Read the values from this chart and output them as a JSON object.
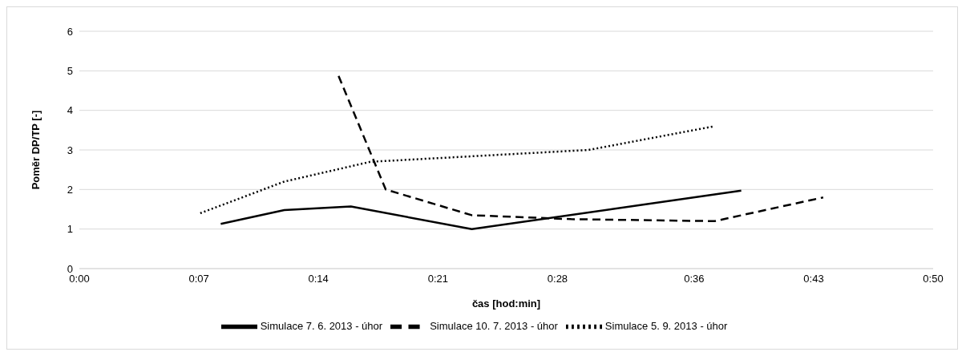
{
  "chart_data": {
    "type": "line",
    "xlabel": "čas [hod:min]",
    "ylabel": "Poměr DP/TP [-]",
    "xlim": [
      0,
      0.8333
    ],
    "xticks": [
      {
        "value": 0,
        "label": "0:00"
      },
      {
        "value": 0.1167,
        "label": "0:07"
      },
      {
        "value": 0.2333,
        "label": "0:14"
      },
      {
        "value": 0.35,
        "label": "0:21"
      },
      {
        "value": 0.4667,
        "label": "0:28"
      },
      {
        "value": 0.6,
        "label": "0:36"
      },
      {
        "value": 0.7167,
        "label": "0:43"
      },
      {
        "value": 0.8333,
        "label": "0:50"
      }
    ],
    "ylim": [
      0,
      6
    ],
    "yticks": [
      0,
      1,
      2,
      3,
      4,
      5,
      6
    ],
    "grid": "y",
    "legend": "bottom",
    "marker": "none",
    "series": [
      {
        "name": "Simulace 7. 6. 2013 - úhor",
        "color": "#000000",
        "line_style": "solid",
        "x": [
          0.138,
          0.2,
          0.265,
          0.383,
          0.646
        ],
        "values": [
          1.13,
          1.48,
          1.57,
          1.0,
          1.97
        ]
      },
      {
        "name": "Simulace 10. 7. 2013 - úhor",
        "color": "#000000",
        "line_style": "dashed",
        "x": [
          0.253,
          0.299,
          0.383,
          0.48,
          0.62,
          0.726
        ],
        "values": [
          4.87,
          2.0,
          1.35,
          1.25,
          1.2,
          1.8
        ]
      },
      {
        "name": "Simulace 5. 9. 2013 - úhor",
        "color": "#000000",
        "line_style": "dotted",
        "x": [
          0.118,
          0.2,
          0.284,
          0.497,
          0.62
        ],
        "values": [
          1.4,
          2.2,
          2.7,
          3.0,
          3.6
        ]
      }
    ]
  }
}
